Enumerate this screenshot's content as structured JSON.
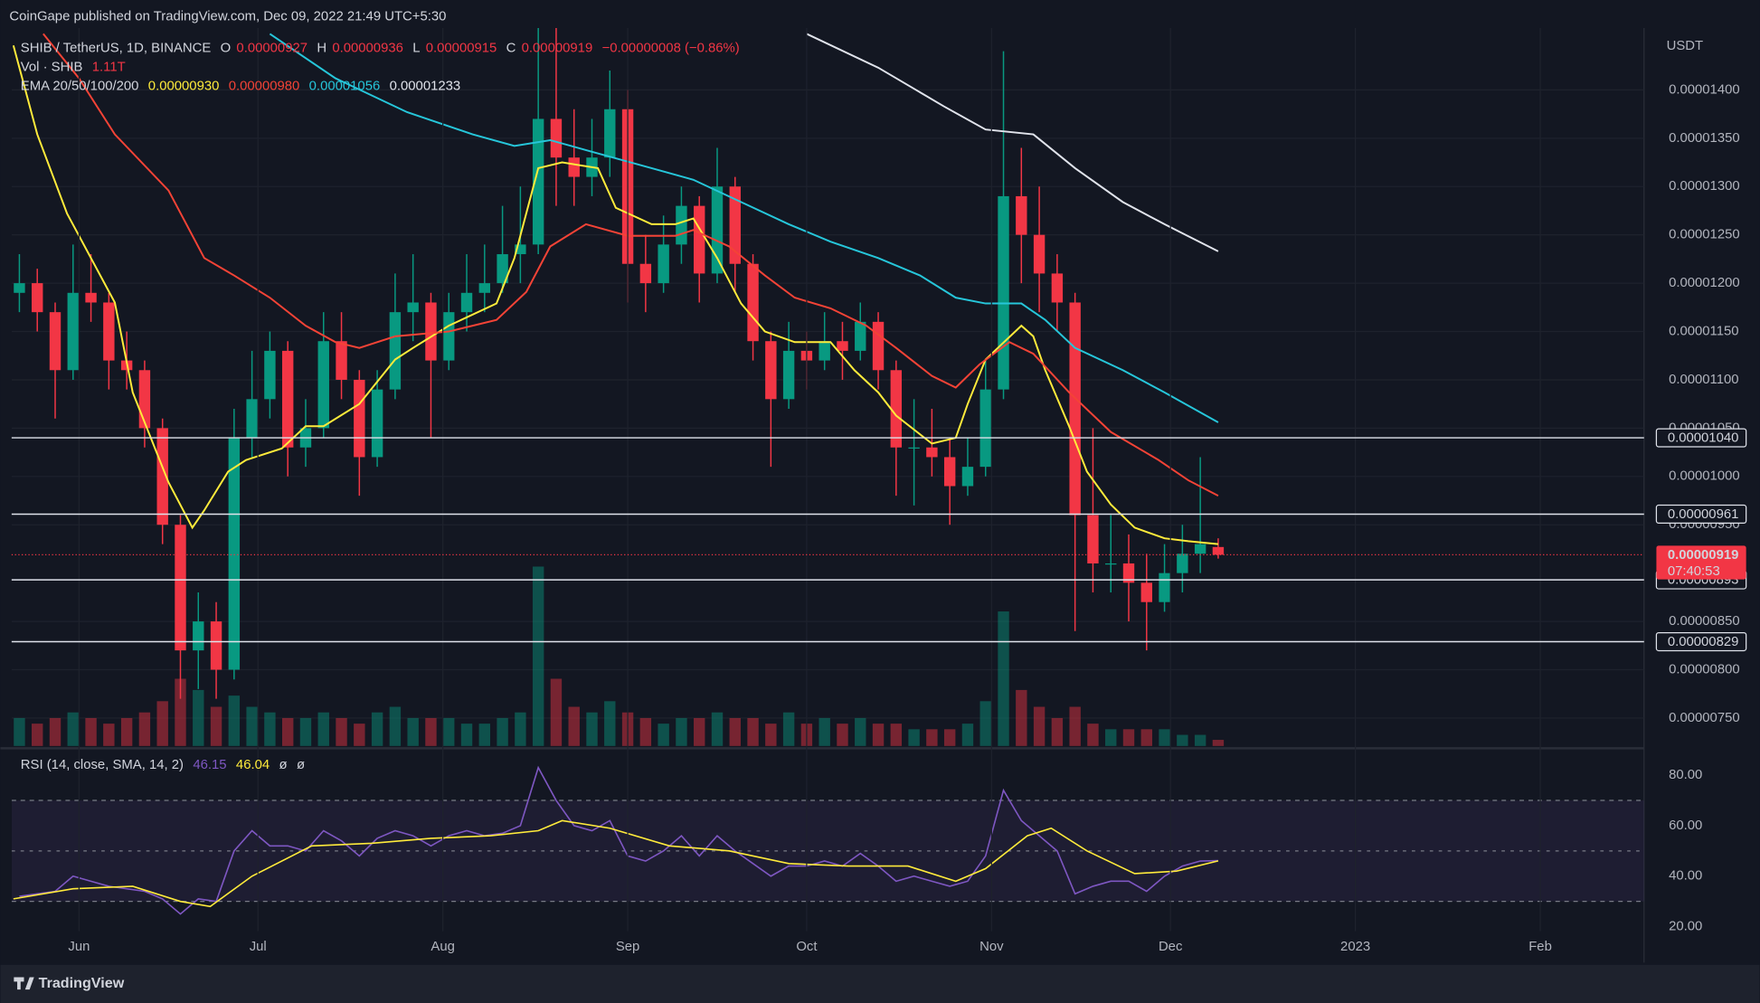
{
  "header": "CoinGape published on TradingView.com, Dec 09, 2022 21:49 UTC+5:30",
  "footer": "TradingView",
  "chart_data": {
    "type": "candlestick",
    "title": "SHIB / TetherUS, 1D, BINANCE",
    "ohlc_labels": [
      "O",
      "H",
      "L",
      "C"
    ],
    "change_label": "−0.00000008 (−0.86%)",
    "countdown": "07:40:53",
    "y_unit": "USDT",
    "up_color": "#089981",
    "down_color": "#f23645",
    "x": [
      1,
      4,
      7,
      10,
      13,
      16,
      19,
      22,
      25,
      28,
      31,
      34,
      37,
      40,
      43,
      46,
      49,
      52,
      55,
      58,
      61,
      64,
      67,
      70,
      73,
      76,
      79,
      82,
      85,
      88,
      91,
      94,
      97,
      100,
      103,
      106,
      109,
      112,
      115,
      118,
      121,
      124,
      127,
      130,
      133,
      136,
      139,
      142,
      145,
      148,
      151,
      154,
      157,
      160,
      163,
      166,
      169,
      172,
      175,
      178,
      181,
      184,
      187,
      190,
      193,
      196,
      199,
      202
    ],
    "open": [
      1.19e-05,
      1.2e-05,
      1.17e-05,
      1.11e-05,
      1.19e-05,
      1.18e-05,
      1.12e-05,
      1.11e-05,
      1.05e-05,
      9.5e-06,
      8.2e-06,
      8.5e-06,
      8e-06,
      1.04e-05,
      1.08e-05,
      1.13e-05,
      1.03e-05,
      1.05e-05,
      1.14e-05,
      1.1e-05,
      1.02e-05,
      1.09e-05,
      1.17e-05,
      1.18e-05,
      1.12e-05,
      1.17e-05,
      1.19e-05,
      1.2e-05,
      1.23e-05,
      1.24e-05,
      1.37e-05,
      1.33e-05,
      1.31e-05,
      1.33e-05,
      1.38e-05,
      1.22e-05,
      1.2e-05,
      1.24e-05,
      1.28e-05,
      1.21e-05,
      1.3e-05,
      1.22e-05,
      1.14e-05,
      1.08e-05,
      1.13e-05,
      1.12e-05,
      1.14e-05,
      1.13e-05,
      1.16e-05,
      1.11e-05,
      1.03e-05,
      1.03e-05,
      1.02e-05,
      9.9e-06,
      1.01e-05,
      1.09e-05,
      1.29e-05,
      1.25e-05,
      1.21e-05,
      1.18e-05,
      9.6e-06,
      9.1e-06,
      9.1e-06,
      8.9e-06,
      8.7e-06,
      9e-06,
      9.2e-06,
      9.27e-06
    ],
    "high": [
      1.23e-05,
      1.215e-05,
      1.18e-05,
      1.24e-05,
      1.23e-05,
      1.19e-05,
      1.15e-05,
      1.12e-05,
      1.06e-05,
      9.6e-06,
      8.8e-06,
      8.7e-06,
      1.07e-05,
      1.13e-05,
      1.15e-05,
      1.14e-05,
      1.08e-05,
      1.17e-05,
      1.17e-05,
      1.11e-05,
      1.11e-05,
      1.21e-05,
      1.23e-05,
      1.19e-05,
      1.19e-05,
      1.23e-05,
      1.24e-05,
      1.28e-05,
      1.3e-05,
      1.5e-05,
      1.48e-05,
      1.38e-05,
      1.37e-05,
      1.42e-05,
      1.4e-05,
      1.25e-05,
      1.27e-05,
      1.3e-05,
      1.29e-05,
      1.34e-05,
      1.31e-05,
      1.23e-05,
      1.15e-05,
      1.16e-05,
      1.15e-05,
      1.17e-05,
      1.16e-05,
      1.18e-05,
      1.17e-05,
      1.12e-05,
      1.08e-05,
      1.07e-05,
      1.04e-05,
      1.04e-05,
      1.12e-05,
      1.44e-05,
      1.34e-05,
      1.3e-05,
      1.23e-05,
      1.19e-05,
      1.05e-05,
      9.6e-06,
      9.4e-06,
      9.2e-06,
      9.3e-06,
      9.5e-06,
      1.02e-05,
      9.36e-06
    ],
    "low": [
      1.17e-05,
      1.15e-05,
      1.06e-05,
      1.1e-05,
      1.16e-05,
      1.09e-05,
      1.09e-05,
      1.03e-05,
      9.3e-06,
      7.7e-06,
      7.8e-06,
      7.7e-06,
      7.9e-06,
      1.02e-05,
      1.06e-05,
      1e-05,
      1.01e-05,
      1.04e-05,
      1.08e-05,
      9.8e-06,
      1.01e-05,
      1.08e-05,
      1.14e-05,
      1.04e-05,
      1.11e-05,
      1.15e-05,
      1.17e-05,
      1.19e-05,
      1.2e-05,
      1.23e-05,
      1.28e-05,
      1.28e-05,
      1.29e-05,
      1.31e-05,
      1.18e-05,
      1.17e-05,
      1.19e-05,
      1.22e-05,
      1.18e-05,
      1.2e-05,
      1.19e-05,
      1.12e-05,
      1.01e-05,
      1.07e-05,
      1.09e-05,
      1.11e-05,
      1.1e-05,
      1.12e-05,
      1.09e-05,
      9.8e-06,
      9.7e-06,
      1e-05,
      9.5e-06,
      9.8e-06,
      1e-05,
      1.08e-05,
      1.2e-05,
      1.17e-05,
      1.15e-05,
      8.4e-06,
      8.8e-06,
      8.8e-06,
      8.5e-06,
      8.2e-06,
      8.6e-06,
      8.8e-06,
      9e-06,
      9.15e-06
    ],
    "close": [
      1.2e-05,
      1.17e-05,
      1.11e-05,
      1.19e-05,
      1.18e-05,
      1.12e-05,
      1.11e-05,
      1.05e-05,
      9.5e-06,
      8.2e-06,
      8.5e-06,
      8e-06,
      1.04e-05,
      1.08e-05,
      1.13e-05,
      1.03e-05,
      1.05e-05,
      1.14e-05,
      1.1e-05,
      1.02e-05,
      1.09e-05,
      1.17e-05,
      1.18e-05,
      1.12e-05,
      1.17e-05,
      1.19e-05,
      1.2e-05,
      1.23e-05,
      1.24e-05,
      1.37e-05,
      1.33e-05,
      1.31e-05,
      1.33e-05,
      1.38e-05,
      1.22e-05,
      1.2e-05,
      1.24e-05,
      1.28e-05,
      1.21e-05,
      1.3e-05,
      1.22e-05,
      1.14e-05,
      1.08e-05,
      1.13e-05,
      1.12e-05,
      1.14e-05,
      1.13e-05,
      1.16e-05,
      1.11e-05,
      1.03e-05,
      1.03e-05,
      1.02e-05,
      9.9e-06,
      1.01e-05,
      1.09e-05,
      1.29e-05,
      1.25e-05,
      1.21e-05,
      1.18e-05,
      9.6e-06,
      9.1e-06,
      9.1e-06,
      8.9e-06,
      8.7e-06,
      9e-06,
      9.2e-06,
      9.3e-06,
      9.19e-06
    ],
    "xlim": [
      -0.3,
      273.4
    ],
    "xticks": [
      {
        "value": 11,
        "label": "Jun"
      },
      {
        "value": 41,
        "label": "Jul"
      },
      {
        "value": 72,
        "label": "Aug"
      },
      {
        "value": 103,
        "label": "Sep"
      },
      {
        "value": 133,
        "label": "Oct"
      },
      {
        "value": 164,
        "label": "Nov"
      },
      {
        "value": 194,
        "label": "Dec"
      },
      {
        "value": 225,
        "label": "2023"
      },
      {
        "value": 256,
        "label": "Feb"
      }
    ],
    "ylim": [
      7.21e-06,
      1.464e-05
    ],
    "yticks": [
      {
        "value": 1.4e-05,
        "label": "0.00001400"
      },
      {
        "value": 1.35e-05,
        "label": "0.00001350"
      },
      {
        "value": 1.3e-05,
        "label": "0.00001300"
      },
      {
        "value": 1.25e-05,
        "label": "0.00001250"
      },
      {
        "value": 1.2e-05,
        "label": "0.00001200"
      },
      {
        "value": 1.15e-05,
        "label": "0.00001150"
      },
      {
        "value": 1.1e-05,
        "label": "0.00001100"
      },
      {
        "value": 1.05e-05,
        "label": "0.00001050"
      },
      {
        "value": 1e-05,
        "label": "0.00001000"
      },
      {
        "value": 9.5e-06,
        "label": "0.00000950"
      },
      {
        "value": 8.5e-06,
        "label": "0.00000850"
      },
      {
        "value": 8e-06,
        "label": "0.00000800"
      },
      {
        "value": 7.5e-06,
        "label": "0.00000750"
      }
    ],
    "grid": true,
    "levels": [
      {
        "value": 1.04e-05,
        "label": "0.00001040"
      },
      {
        "value": 9.61e-06,
        "label": "0.00000961"
      },
      {
        "value": 8.93e-06,
        "label": "0.00000893"
      },
      {
        "value": 8.29e-06,
        "label": "0.00000829"
      }
    ],
    "ema": {
      "name": "EMA 20/50/100/200",
      "series": [
        {
          "color": "#ffeb3b",
          "value_label": "0.00000930",
          "x": [
            0,
            4,
            9,
            17,
            20,
            26,
            30,
            32,
            36,
            39,
            45,
            49,
            52,
            58,
            64,
            67,
            73,
            81,
            84,
            88,
            92,
            98,
            101,
            107,
            111,
            114,
            118,
            122,
            126,
            131,
            137,
            141,
            145,
            148,
            154,
            158,
            160,
            163,
            169,
            171,
            173,
            177,
            180,
            184,
            188,
            193,
            197,
            202
          ],
          "values": [
            1.446e-05,
            1.354e-05,
            1.272e-05,
            1.18e-05,
            1.087e-05,
            9.94e-06,
            9.47e-06,
            9.65e-06,
            1.005e-05,
            1.017e-05,
            1.029e-05,
            1.052e-05,
            1.052e-05,
            1.075e-05,
            1.121e-05,
            1.133e-05,
            1.156e-05,
            1.179e-05,
            1.226e-05,
            1.319e-05,
            1.325e-05,
            1.319e-05,
            1.278e-05,
            1.261e-05,
            1.261e-05,
            1.267e-05,
            1.226e-05,
            1.179e-05,
            1.15e-05,
            1.139e-05,
            1.139e-05,
            1.11e-05,
            1.087e-05,
            1.063e-05,
            1.034e-05,
            1.04e-05,
            1.075e-05,
            1.121e-05,
            1.156e-05,
            1.145e-05,
            1.11e-05,
            1.052e-05,
            1.005e-05,
            9.71e-06,
            9.47e-06,
            9.36e-06,
            9.33e-06,
            9.3e-06
          ]
        },
        {
          "color": "#f44336",
          "value_label": "0.00000980",
          "x": [
            5,
            11,
            17,
            26,
            32,
            37,
            43,
            49,
            54,
            58,
            64,
            73,
            81,
            86,
            90,
            96,
            103,
            111,
            114,
            120,
            126,
            131,
            137,
            143,
            148,
            154,
            158,
            162,
            167,
            171,
            177,
            184,
            192,
            197,
            202
          ],
          "values": [
            1.458e-05,
            1.412e-05,
            1.354e-05,
            1.296e-05,
            1.226e-05,
            1.208e-05,
            1.185e-05,
            1.156e-05,
            1.139e-05,
            1.133e-05,
            1.145e-05,
            1.15e-05,
            1.162e-05,
            1.191e-05,
            1.238e-05,
            1.261e-05,
            1.249e-05,
            1.249e-05,
            1.255e-05,
            1.238e-05,
            1.208e-05,
            1.185e-05,
            1.174e-05,
            1.156e-05,
            1.133e-05,
            1.104e-05,
            1.092e-05,
            1.116e-05,
            1.139e-05,
            1.127e-05,
            1.087e-05,
            1.046e-05,
            1.017e-05,
            9.96e-06,
            9.8e-06
          ]
        },
        {
          "color": "#26c6da",
          "value_label": "0.00001056",
          "x": [
            43,
            54,
            66,
            77,
            84,
            90,
            97,
            107,
            114,
            122,
            130,
            137,
            145,
            152,
            158,
            163,
            169,
            173,
            178,
            186,
            193,
            202
          ],
          "values": [
            1.458e-05,
            1.412e-05,
            1.377e-05,
            1.354e-05,
            1.342e-05,
            1.348e-05,
            1.336e-05,
            1.319e-05,
            1.307e-05,
            1.284e-05,
            1.261e-05,
            1.243e-05,
            1.226e-05,
            1.208e-05,
            1.185e-05,
            1.179e-05,
            1.179e-05,
            1.162e-05,
            1.133e-05,
            1.11e-05,
            1.087e-05,
            1.056e-05
          ]
        },
        {
          "color": "#e0e3eb",
          "value_label": "0.00001233",
          "x": [
            133,
            145,
            156,
            163,
            171,
            178,
            186,
            193,
            202
          ],
          "values": [
            1.458e-05,
            1.423e-05,
            1.383e-05,
            1.359e-05,
            1.354e-05,
            1.319e-05,
            1.284e-05,
            1.261e-05,
            1.233e-05
          ]
        }
      ]
    },
    "volume": {
      "name": "Vol · SHIB",
      "value_label": "1.11T",
      "ylim": [
        0,
        40
      ],
      "values": [
        5,
        4,
        5,
        6,
        5,
        4,
        5,
        6,
        8,
        12,
        10,
        7,
        9,
        7,
        6,
        5,
        5,
        6,
        5,
        4,
        6,
        7,
        5,
        5,
        5,
        4,
        4,
        5,
        6,
        32,
        12,
        7,
        6,
        8,
        6,
        5,
        4,
        5,
        5,
        6,
        5,
        5,
        4,
        6,
        4,
        5,
        4,
        5,
        4,
        4,
        3,
        3,
        3,
        4,
        8,
        24,
        10,
        7,
        5,
        7,
        4,
        3,
        3,
        3,
        3,
        2,
        2,
        1.11
      ]
    },
    "rsi": {
      "name": "RSI (14, close, SMA, 14, 2)",
      "color": "#7e57c2",
      "extra": [
        "ø",
        "ø"
      ],
      "values": [
        32,
        33,
        34,
        40,
        38,
        36,
        35,
        34,
        31,
        25,
        31,
        30,
        50,
        58,
        52,
        52,
        50,
        58,
        54,
        48,
        55,
        58,
        56,
        52,
        56,
        58,
        56,
        57,
        60,
        83,
        70,
        60,
        58,
        62,
        48,
        46,
        50,
        56,
        48,
        56,
        50,
        45,
        40,
        44,
        44,
        46,
        44,
        49,
        44,
        38,
        40,
        38,
        36,
        38,
        48,
        74,
        62,
        56,
        50,
        33,
        36,
        38,
        38,
        34,
        40,
        44,
        46,
        46.15
      ],
      "sma": {
        "color": "#ffeb3b",
        "x": [
          0,
          10,
          20,
          28,
          33,
          40,
          50,
          60,
          70,
          80,
          88,
          92,
          100,
          110,
          120,
          130,
          140,
          150,
          158,
          163,
          170,
          174,
          180,
          188,
          195,
          202
        ],
        "values": [
          31,
          35,
          36,
          30,
          28,
          40,
          52,
          53,
          55,
          56,
          58,
          62,
          59,
          52,
          50,
          45,
          44,
          44,
          38,
          43,
          56,
          59,
          50,
          41,
          42,
          46.04
        ]
      },
      "ylim": [
        18.2,
        90.2
      ],
      "yticks": [
        {
          "value": 80,
          "label": "80.00"
        },
        {
          "value": 60,
          "label": "60.00"
        },
        {
          "value": 40,
          "label": "40.00"
        },
        {
          "value": 20,
          "label": "20.00"
        }
      ],
      "bands": [
        30,
        70
      ],
      "mid": 50
    }
  }
}
